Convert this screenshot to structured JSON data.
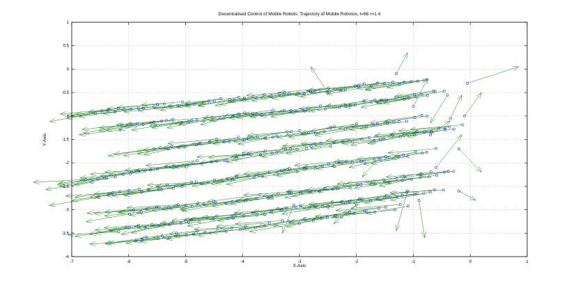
{
  "chart_data": {
    "type": "scatter",
    "title": "Decentralised Control of Mobile Robots: Trajectory of Mobile Robotos, t=66 r=1.4",
    "xlabel": "X-Axis",
    "ylabel": "Y-Axis",
    "xlim": [
      -7,
      1
    ],
    "ylim": [
      -4,
      1
    ],
    "xticks": [
      -7,
      -6,
      -5,
      -4,
      -3,
      -2,
      -1,
      0,
      1
    ],
    "yticks": [
      -4,
      -3.5,
      -3,
      -2.5,
      -2,
      -1.5,
      -1,
      -0.5,
      0,
      0.5,
      1
    ],
    "xtick_labels": [
      "-7",
      "-6",
      "-5",
      "-4",
      "-3",
      "-2",
      "-1",
      "0",
      "1"
    ],
    "ytick_labels": [
      "-4",
      "-3.5",
      "-3",
      "-2.5",
      "-2",
      "-1.5",
      "-1",
      "-0.5",
      "0",
      "0.5",
      "1"
    ],
    "grid": true,
    "colors": {
      "robot_marker": "#2020ff",
      "velocity_arrow": "#1c8a1c"
    },
    "robot_trails": [
      {
        "x": [
          -6.6,
          -5.6,
          -4.6,
          -3.6,
          -2.6,
          -1.6,
          -0.6
        ],
        "y": [
          -0.92,
          -0.8,
          -0.7,
          -0.58,
          -0.45,
          -0.32,
          -0.2
        ],
        "jitter": 0.05,
        "density": 9
      },
      {
        "x": [
          -6.2,
          -5.2,
          -4.2,
          -3.2,
          -2.2,
          -1.2,
          -0.4
        ],
        "y": [
          -1.25,
          -1.12,
          -1.0,
          -0.9,
          -0.78,
          -0.6,
          -0.45
        ],
        "jitter": 0.05,
        "density": 9
      },
      {
        "x": [
          -5.6,
          -4.6,
          -3.6,
          -2.6,
          -1.6,
          -0.6
        ],
        "y": [
          -1.7,
          -1.55,
          -1.42,
          -1.3,
          -1.15,
          -1.0
        ],
        "jitter": 0.05,
        "density": 8
      },
      {
        "x": [
          -6.8,
          -5.8,
          -4.8,
          -3.8,
          -2.8,
          -1.8,
          -0.8,
          -0.1
        ],
        "y": [
          -2.4,
          -2.2,
          -2.0,
          -1.82,
          -1.65,
          -1.5,
          -1.35,
          -1.2
        ],
        "jitter": 0.05,
        "density": 9
      },
      {
        "x": [
          -6.5,
          -5.5,
          -4.5,
          -3.5,
          -2.5,
          -1.5,
          -0.5
        ],
        "y": [
          -2.7,
          -2.55,
          -2.38,
          -2.22,
          -2.05,
          -1.9,
          -1.72
        ],
        "jitter": 0.05,
        "density": 9
      },
      {
        "x": [
          -6.0,
          -5.0,
          -4.0,
          -3.0,
          -2.0,
          -1.0,
          -0.2
        ],
        "y": [
          -3.05,
          -2.9,
          -2.78,
          -2.62,
          -2.48,
          -2.3,
          -2.15
        ],
        "jitter": 0.05,
        "density": 9
      },
      {
        "x": [
          -6.3,
          -5.3,
          -4.3,
          -3.3,
          -2.3,
          -1.3,
          -0.4
        ],
        "y": [
          -3.45,
          -3.3,
          -3.15,
          -3.0,
          -2.85,
          -2.7,
          -2.55
        ],
        "jitter": 0.05,
        "density": 9
      },
      {
        "x": [
          -5.9,
          -4.9,
          -3.9,
          -2.9,
          -1.9,
          -1.0
        ],
        "y": [
          -3.65,
          -3.5,
          -3.38,
          -3.22,
          -3.05,
          -2.9
        ],
        "jitter": 0.05,
        "density": 8
      }
    ],
    "scattered_robots": [
      {
        "x": -0.05,
        "y": -0.3,
        "vx": 0.9,
        "vy": 0.35
      },
      {
        "x": -0.1,
        "y": -1.0,
        "vx": 0.3,
        "vy": 0.5
      },
      {
        "x": -0.2,
        "y": -1.7,
        "vx": 0.4,
        "vy": -0.5
      },
      {
        "x": -0.4,
        "y": -0.55,
        "vx": -0.3,
        "vy": -0.6
      },
      {
        "x": -0.6,
        "y": -2.1,
        "vx": 0.45,
        "vy": 0.7
      },
      {
        "x": -0.9,
        "y": -2.8,
        "vx": 0.1,
        "vy": -0.8
      },
      {
        "x": -1.1,
        "y": -2.6,
        "vx": -0.2,
        "vy": -0.85
      },
      {
        "x": -1.3,
        "y": -0.1,
        "vx": 0.2,
        "vy": 0.45
      },
      {
        "x": -1.0,
        "y": -0.8,
        "vx": 0.25,
        "vy": 0.6
      },
      {
        "x": -0.7,
        "y": -1.4,
        "vx": 0.35,
        "vy": 0.3
      },
      {
        "x": -0.2,
        "y": -2.6,
        "vx": 0.3,
        "vy": -0.2
      },
      {
        "x": -1.6,
        "y": -1.9,
        "vx": -0.3,
        "vy": -0.4
      },
      {
        "x": -2.0,
        "y": -2.9,
        "vx": -0.4,
        "vy": -0.4
      },
      {
        "x": -2.5,
        "y": -0.5,
        "vx": -0.3,
        "vy": 0.55
      },
      {
        "x": -3.1,
        "y": -2.9,
        "vx": -0.2,
        "vy": -0.6
      },
      {
        "x": -0.35,
        "y": -1.05,
        "vx": 0.2,
        "vy": 0.5
      }
    ]
  }
}
